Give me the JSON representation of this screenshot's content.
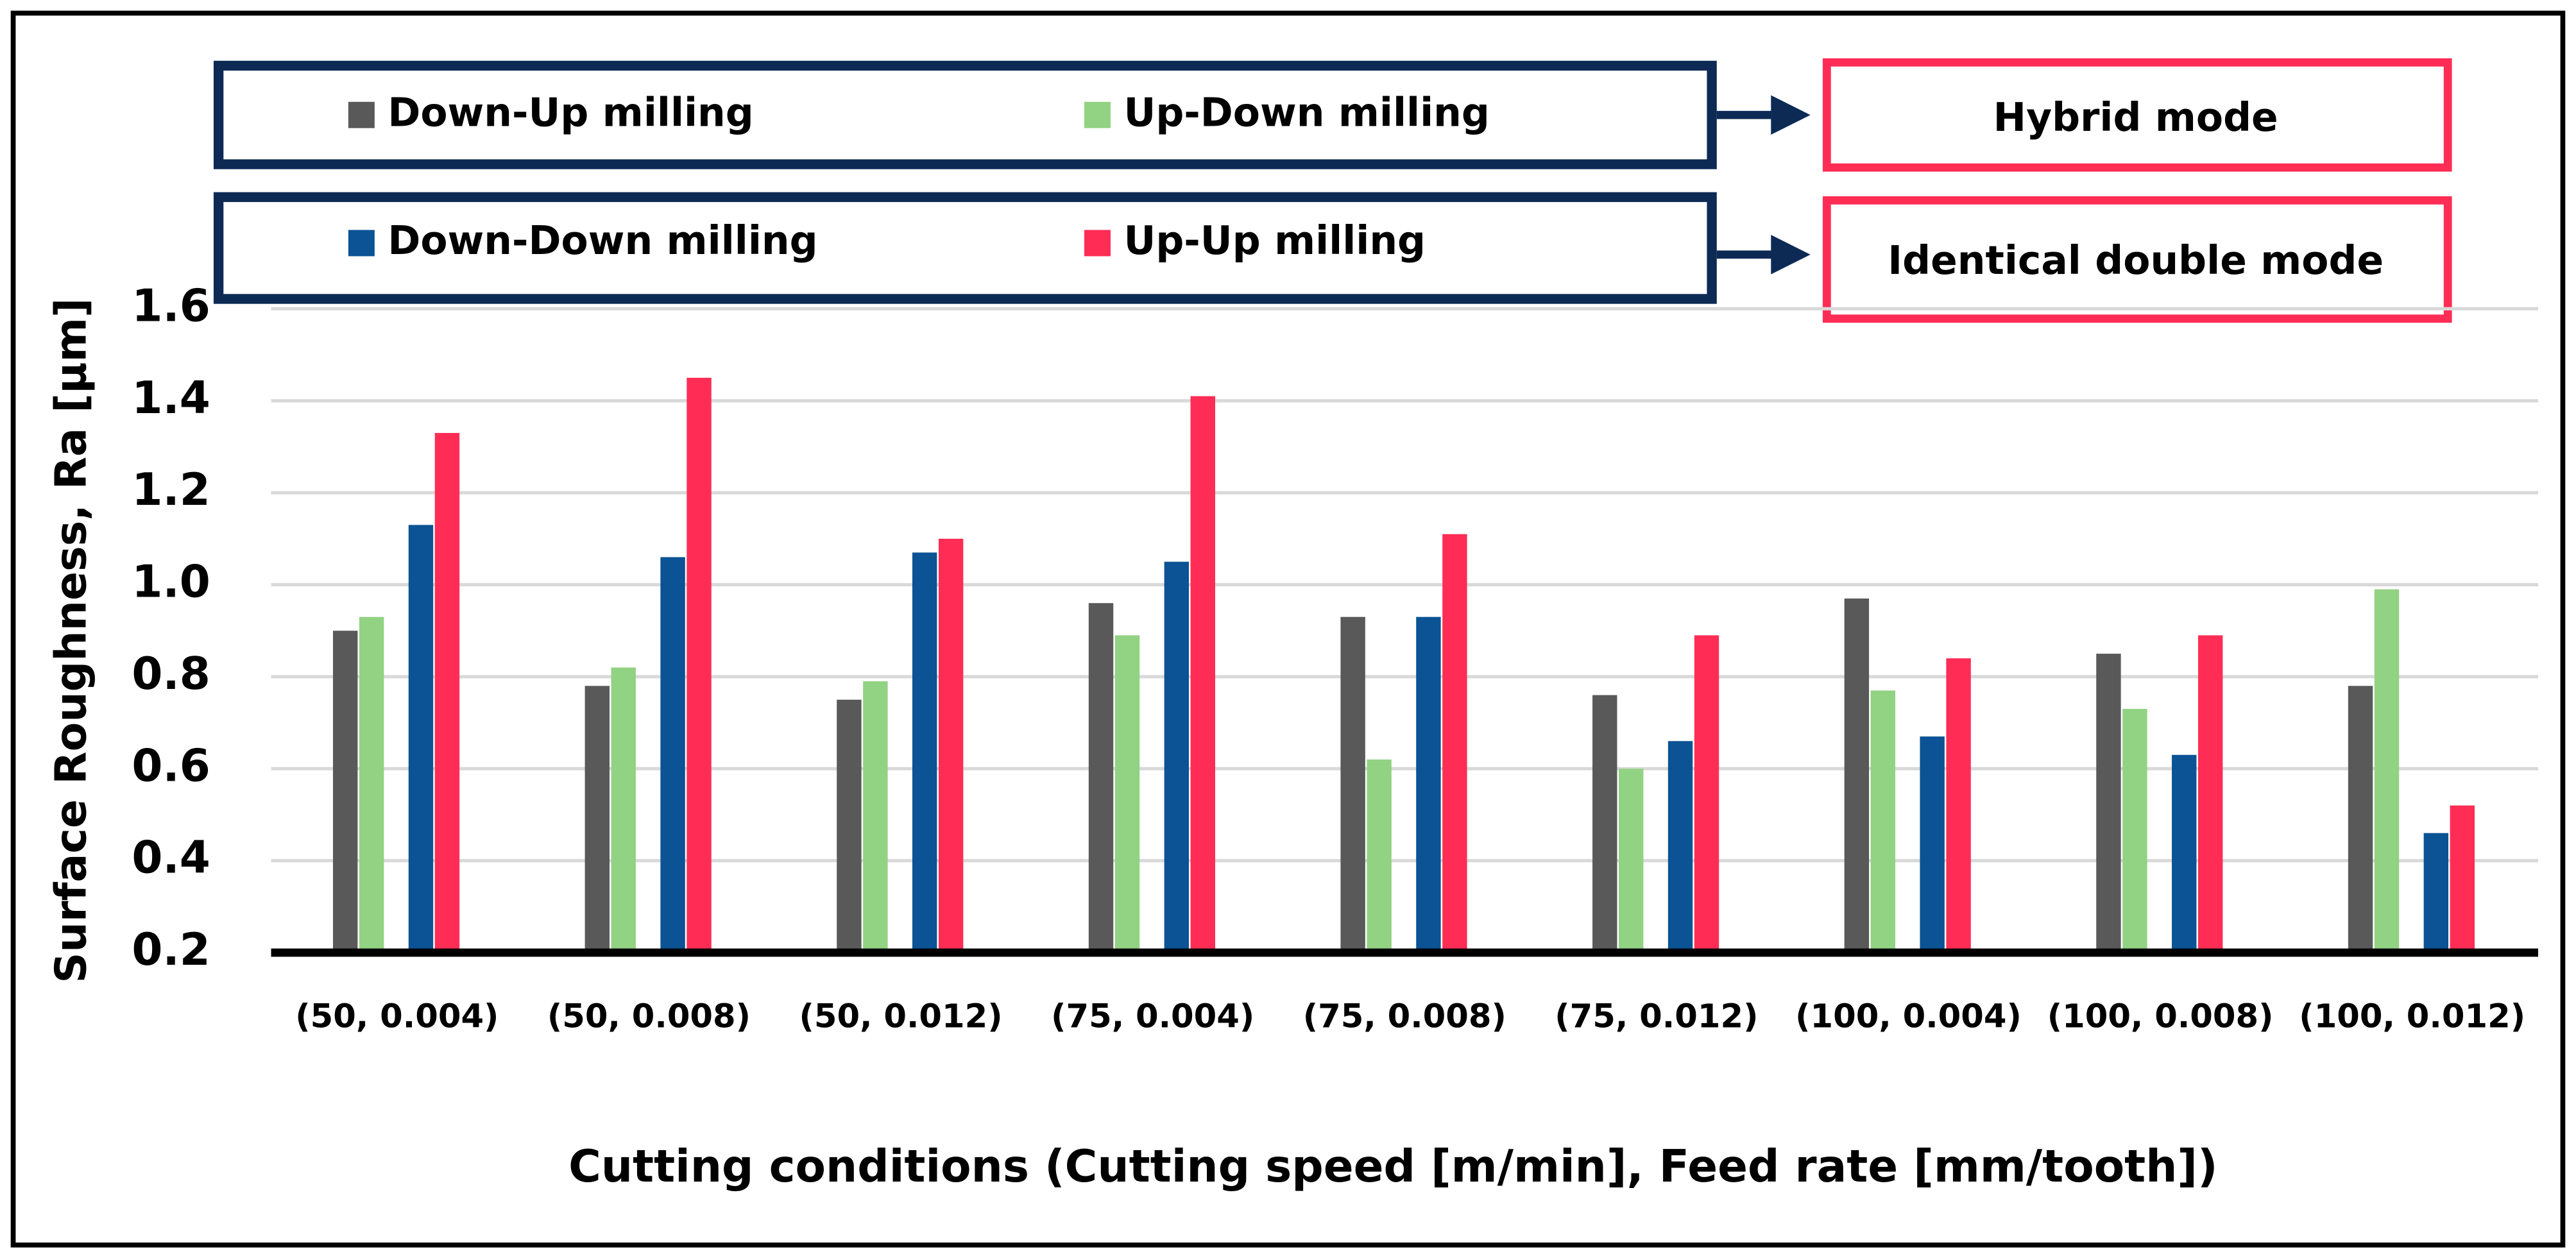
{
  "chart_data": {
    "type": "bar",
    "x_label": "Cutting conditions (Cutting speed [m/min], Feed rate [mm/tooth])",
    "y_label": "Surface Roughness, Ra [µm]",
    "categories": [
      "(50, 0.004)",
      "(50, 0.008)",
      "(50, 0.012)",
      "(75, 0.004)",
      "(75, 0.008)",
      "(75, 0.012)",
      "(100, 0.004)",
      "(100, 0.008)",
      "(100, 0.012)"
    ],
    "series": [
      {
        "name": "Down-Up milling",
        "color": "#595959",
        "values": [
          0.9,
          0.78,
          0.75,
          0.96,
          0.93,
          0.76,
          0.97,
          0.85,
          0.78
        ]
      },
      {
        "name": "Up-Down milling",
        "color": "#92d283",
        "values": [
          0.93,
          0.82,
          0.79,
          0.89,
          0.62,
          0.6,
          0.77,
          0.73,
          0.99
        ]
      },
      {
        "name": "Down-Down milling",
        "color": "#0b5394",
        "values": [
          1.13,
          1.06,
          1.07,
          1.05,
          0.93,
          0.66,
          0.67,
          0.63,
          0.46
        ]
      },
      {
        "name": "Up-Up milling",
        "color": "#ff2d55",
        "values": [
          1.33,
          1.45,
          1.1,
          1.41,
          1.11,
          0.89,
          0.84,
          0.89,
          0.52
        ]
      }
    ],
    "legend_groups": [
      "Hybrid mode",
      "Identical double mode"
    ],
    "ylim": [
      0.2,
      1.6
    ],
    "yticks": [
      0.2,
      0.4,
      0.6,
      0.8,
      {
        "value": 1,
        "label": "1.0"
      },
      1.2,
      1.4,
      1.6
    ],
    "grid": true
  }
}
